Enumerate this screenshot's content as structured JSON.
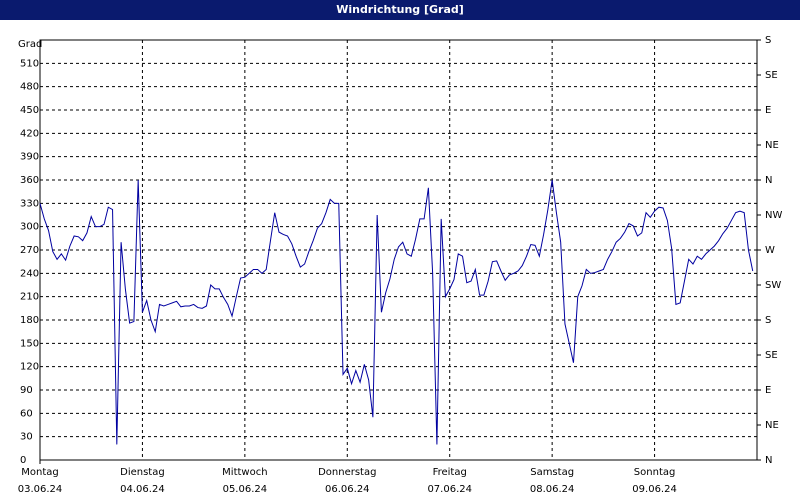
{
  "chart_data": {
    "type": "line",
    "title": "Windrichtung [Grad]",
    "y_label": "Grad",
    "color": "#0000a0",
    "grid": true,
    "xlim": [
      0,
      168
    ],
    "xticks": [
      {
        "value": 0,
        "label": "Montag"
      },
      {
        "value": 24,
        "label": "Dienstag"
      },
      {
        "value": 48,
        "label": "Mittwoch"
      },
      {
        "value": 72,
        "label": "Donnerstag"
      },
      {
        "value": 96,
        "label": "Freitag"
      },
      {
        "value": 120,
        "label": "Samstag"
      },
      {
        "value": 144,
        "label": "Sonntag"
      }
    ],
    "xtick_dates": [
      "03.06.24",
      "04.06.24",
      "05.06.24",
      "06.06.24",
      "07.06.24",
      "08.06.24",
      "09.06.24"
    ],
    "ylim": [
      0,
      540
    ],
    "yticks": [
      0,
      30,
      60,
      90,
      120,
      150,
      180,
      210,
      240,
      270,
      300,
      330,
      360,
      390,
      420,
      450,
      480,
      510
    ],
    "y2lim": [
      0,
      540
    ],
    "y2ticks": [
      {
        "value": 0,
        "label": "N"
      },
      {
        "value": 45,
        "label": "NE"
      },
      {
        "value": 90,
        "label": "E"
      },
      {
        "value": 135,
        "label": "SE"
      },
      {
        "value": 180,
        "label": "S"
      },
      {
        "value": 225,
        "label": "SW"
      },
      {
        "value": 270,
        "label": "W"
      },
      {
        "value": 315,
        "label": "NW"
      },
      {
        "value": 360,
        "label": "N"
      },
      {
        "value": 405,
        "label": "NE"
      },
      {
        "value": 450,
        "label": "E"
      },
      {
        "value": 495,
        "label": "SE"
      },
      {
        "value": 540,
        "label": "S"
      }
    ],
    "x": [
      0,
      1,
      2,
      3,
      4,
      5,
      6,
      7,
      8,
      9,
      10,
      11,
      12,
      13,
      14,
      15,
      16,
      17,
      18,
      19,
      20,
      21,
      22,
      23,
      24,
      25,
      26,
      27,
      28,
      29,
      30,
      31,
      32,
      33,
      34,
      35,
      36,
      37,
      38,
      39,
      40,
      41,
      42,
      43,
      44,
      45,
      46,
      47,
      48,
      49,
      50,
      51,
      52,
      53,
      54,
      55,
      56,
      57,
      58,
      59,
      60,
      61,
      62,
      63,
      64,
      65,
      66,
      67,
      68,
      69,
      70,
      71,
      72,
      73,
      74,
      75,
      76,
      77,
      78,
      79,
      80,
      81,
      82,
      83,
      84,
      85,
      86,
      87,
      88,
      89,
      90,
      91,
      92,
      93,
      94,
      95,
      96,
      97,
      98,
      99,
      100,
      101,
      102,
      103,
      104,
      105,
      106,
      107,
      108,
      109,
      110,
      111,
      112,
      113,
      114,
      115,
      116,
      117,
      118,
      119,
      120,
      121,
      122,
      123,
      124,
      125,
      126,
      127,
      128,
      129,
      130,
      131,
      132,
      133,
      134,
      135,
      136,
      137,
      138,
      139,
      140,
      141,
      142,
      143,
      144,
      145,
      146,
      147,
      148,
      149,
      150,
      151,
      152,
      153,
      154,
      155,
      156,
      157,
      158,
      159,
      160,
      161,
      162,
      163,
      164,
      165,
      166,
      167
    ],
    "values": [
      330,
      310,
      295,
      268,
      258,
      265,
      257,
      275,
      288,
      287,
      282,
      292,
      313,
      300,
      300,
      303,
      325,
      322,
      20,
      280,
      220,
      176,
      178,
      360,
      190,
      205,
      180,
      165,
      200,
      198,
      200,
      202,
      204,
      197,
      198,
      198,
      200,
      196,
      195,
      198,
      225,
      220,
      220,
      209,
      200,
      185,
      210,
      234,
      235,
      240,
      245,
      245,
      240,
      245,
      282,
      318,
      293,
      290,
      288,
      278,
      262,
      248,
      252,
      268,
      282,
      298,
      304,
      318,
      335,
      330,
      330,
      110,
      118,
      98,
      115,
      100,
      123,
      103,
      55,
      315,
      190,
      215,
      233,
      258,
      274,
      280,
      265,
      262,
      284,
      310,
      310,
      350,
      240,
      20,
      310,
      210,
      220,
      232,
      265,
      262,
      228,
      230,
      245,
      212,
      212,
      230,
      255,
      256,
      243,
      231,
      238,
      240,
      243,
      250,
      262,
      277,
      276,
      262,
      290,
      322,
      360,
      318,
      280,
      175,
      150,
      125,
      210,
      224,
      245,
      240,
      241,
      243,
      245,
      258,
      268,
      280,
      285,
      293,
      304,
      301,
      288,
      292,
      318,
      312,
      320,
      325,
      324,
      308,
      272,
      200,
      202,
      230,
      258,
      252,
      262,
      258,
      265,
      270,
      275,
      282,
      291,
      298,
      308,
      318,
      320,
      318,
      270,
      243
    ]
  }
}
